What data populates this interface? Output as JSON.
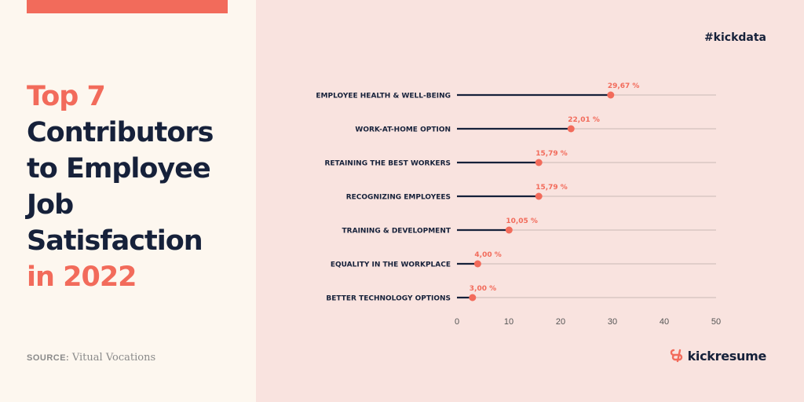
{
  "title": {
    "line1": "Top 7",
    "line2": "Contributors",
    "line3": "to Employee",
    "line4": "Job",
    "line5": "Satisfaction",
    "line6_prefix": "in ",
    "line6_year": "2022"
  },
  "source": {
    "label": "SOURCE:",
    "value": "Vitual Vocations"
  },
  "hashtag": "#kickdata",
  "brand": {
    "name": "kickresume",
    "icon": "kickresume-logo-icon"
  },
  "colors": {
    "accent": "#f26b5b",
    "dark": "#16213a",
    "left_bg": "#fdf7ef",
    "right_bg": "#f9e3df"
  },
  "chart_data": {
    "type": "bar",
    "style": "lollipop",
    "orientation": "horizontal",
    "categories": [
      "EMPLOYEE HEALTH & WELL-BEING",
      "WORK-AT-HOME OPTION",
      "RETAINING THE BEST WORKERS",
      "RECOGNIZING EMPLOYEES",
      "TRAINING & DEVELOPMENT",
      "EQUALITY IN THE WORKPLACE",
      "BETTER TECHNOLOGY OPTIONS"
    ],
    "values": [
      29.67,
      22.01,
      15.79,
      15.79,
      10.05,
      4.0,
      3.0
    ],
    "value_labels": [
      "29,67 %",
      "22,01 %",
      "15,79 %",
      "15,79 %",
      "10,05 %",
      "4,00 %",
      "3,00 %"
    ],
    "xlim": [
      0,
      50
    ],
    "xticks": [
      "0",
      "10",
      "20",
      "30",
      "40",
      "50"
    ],
    "grid": false
  }
}
